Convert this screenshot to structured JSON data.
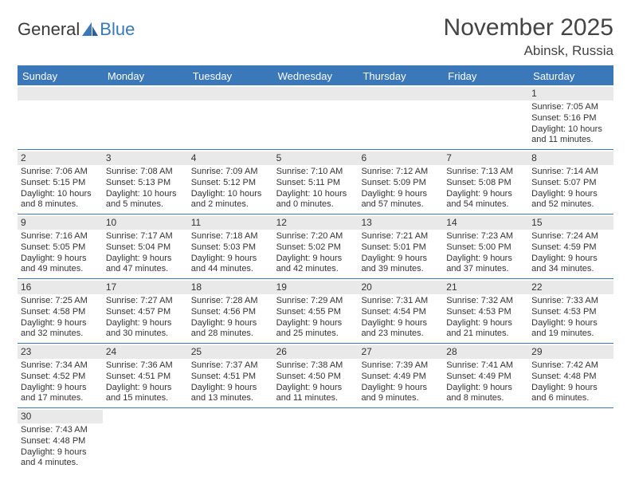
{
  "brand": {
    "part1": "General",
    "part2": "Blue"
  },
  "title": "November 2025",
  "location": "Abinsk, Russia",
  "colors": {
    "accent": "#3a78b9",
    "daynum_bg": "#e9e9e9",
    "text": "#333333",
    "bg": "#ffffff"
  },
  "weekdays": [
    "Sunday",
    "Monday",
    "Tuesday",
    "Wednesday",
    "Thursday",
    "Friday",
    "Saturday"
  ],
  "weeks": [
    [
      null,
      null,
      null,
      null,
      null,
      null,
      {
        "d": "1",
        "sr": "7:05 AM",
        "ss": "5:16 PM",
        "dl": "10 hours and 11 minutes."
      }
    ],
    [
      {
        "d": "2",
        "sr": "7:06 AM",
        "ss": "5:15 PM",
        "dl": "10 hours and 8 minutes."
      },
      {
        "d": "3",
        "sr": "7:08 AM",
        "ss": "5:13 PM",
        "dl": "10 hours and 5 minutes."
      },
      {
        "d": "4",
        "sr": "7:09 AM",
        "ss": "5:12 PM",
        "dl": "10 hours and 2 minutes."
      },
      {
        "d": "5",
        "sr": "7:10 AM",
        "ss": "5:11 PM",
        "dl": "10 hours and 0 minutes."
      },
      {
        "d": "6",
        "sr": "7:12 AM",
        "ss": "5:09 PM",
        "dl": "9 hours and 57 minutes."
      },
      {
        "d": "7",
        "sr": "7:13 AM",
        "ss": "5:08 PM",
        "dl": "9 hours and 54 minutes."
      },
      {
        "d": "8",
        "sr": "7:14 AM",
        "ss": "5:07 PM",
        "dl": "9 hours and 52 minutes."
      }
    ],
    [
      {
        "d": "9",
        "sr": "7:16 AM",
        "ss": "5:05 PM",
        "dl": "9 hours and 49 minutes."
      },
      {
        "d": "10",
        "sr": "7:17 AM",
        "ss": "5:04 PM",
        "dl": "9 hours and 47 minutes."
      },
      {
        "d": "11",
        "sr": "7:18 AM",
        "ss": "5:03 PM",
        "dl": "9 hours and 44 minutes."
      },
      {
        "d": "12",
        "sr": "7:20 AM",
        "ss": "5:02 PM",
        "dl": "9 hours and 42 minutes."
      },
      {
        "d": "13",
        "sr": "7:21 AM",
        "ss": "5:01 PM",
        "dl": "9 hours and 39 minutes."
      },
      {
        "d": "14",
        "sr": "7:23 AM",
        "ss": "5:00 PM",
        "dl": "9 hours and 37 minutes."
      },
      {
        "d": "15",
        "sr": "7:24 AM",
        "ss": "4:59 PM",
        "dl": "9 hours and 34 minutes."
      }
    ],
    [
      {
        "d": "16",
        "sr": "7:25 AM",
        "ss": "4:58 PM",
        "dl": "9 hours and 32 minutes."
      },
      {
        "d": "17",
        "sr": "7:27 AM",
        "ss": "4:57 PM",
        "dl": "9 hours and 30 minutes."
      },
      {
        "d": "18",
        "sr": "7:28 AM",
        "ss": "4:56 PM",
        "dl": "9 hours and 28 minutes."
      },
      {
        "d": "19",
        "sr": "7:29 AM",
        "ss": "4:55 PM",
        "dl": "9 hours and 25 minutes."
      },
      {
        "d": "20",
        "sr": "7:31 AM",
        "ss": "4:54 PM",
        "dl": "9 hours and 23 minutes."
      },
      {
        "d": "21",
        "sr": "7:32 AM",
        "ss": "4:53 PM",
        "dl": "9 hours and 21 minutes."
      },
      {
        "d": "22",
        "sr": "7:33 AM",
        "ss": "4:53 PM",
        "dl": "9 hours and 19 minutes."
      }
    ],
    [
      {
        "d": "23",
        "sr": "7:34 AM",
        "ss": "4:52 PM",
        "dl": "9 hours and 17 minutes."
      },
      {
        "d": "24",
        "sr": "7:36 AM",
        "ss": "4:51 PM",
        "dl": "9 hours and 15 minutes."
      },
      {
        "d": "25",
        "sr": "7:37 AM",
        "ss": "4:51 PM",
        "dl": "9 hours and 13 minutes."
      },
      {
        "d": "26",
        "sr": "7:38 AM",
        "ss": "4:50 PM",
        "dl": "9 hours and 11 minutes."
      },
      {
        "d": "27",
        "sr": "7:39 AM",
        "ss": "4:49 PM",
        "dl": "9 hours and 9 minutes."
      },
      {
        "d": "28",
        "sr": "7:41 AM",
        "ss": "4:49 PM",
        "dl": "9 hours and 8 minutes."
      },
      {
        "d": "29",
        "sr": "7:42 AM",
        "ss": "4:48 PM",
        "dl": "9 hours and 6 minutes."
      }
    ],
    [
      {
        "d": "30",
        "sr": "7:43 AM",
        "ss": "4:48 PM",
        "dl": "9 hours and 4 minutes."
      },
      null,
      null,
      null,
      null,
      null,
      null
    ]
  ],
  "labels": {
    "sunrise": "Sunrise: ",
    "sunset": "Sunset: ",
    "daylight": "Daylight: "
  }
}
